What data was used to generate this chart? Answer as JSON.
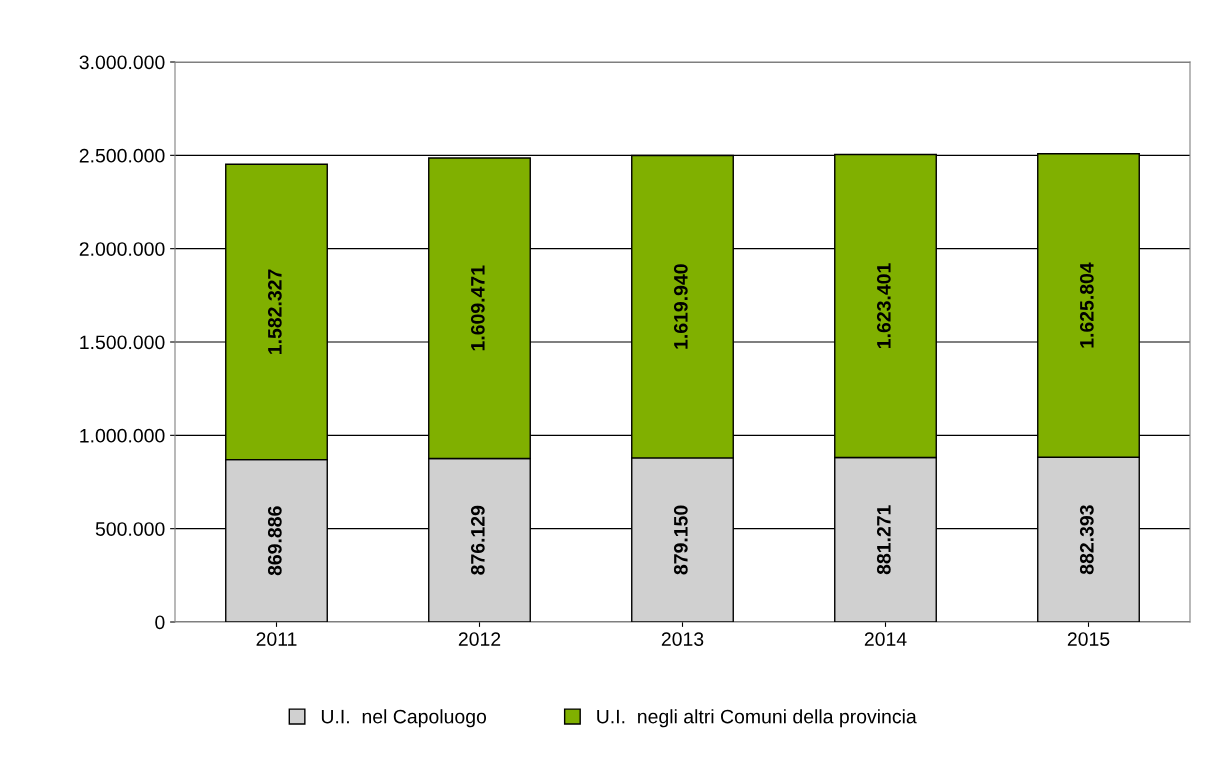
{
  "chart_data": {
    "type": "bar",
    "stacked": true,
    "categories": [
      "2011",
      "2012",
      "2013",
      "2014",
      "2015"
    ],
    "series": [
      {
        "name": "U.I.  nel Capoluogo",
        "color": "#d0d0d0",
        "values": [
          869886,
          876129,
          879150,
          881271,
          882393
        ],
        "value_labels": [
          "869.886",
          "876.129",
          "879.150",
          "881.271",
          "882.393"
        ]
      },
      {
        "name": "U.I.  negli altri Comuni della provincia",
        "color": "#80b000",
        "values": [
          1582327,
          1609471,
          1619940,
          1623401,
          1625804
        ],
        "value_labels": [
          "1.582.327",
          "1.609.471",
          "1.619.940",
          "1.623.401",
          "1.625.804"
        ]
      }
    ],
    "ylim": [
      0,
      3000000
    ],
    "yticks": [
      {
        "value": 0,
        "label": "0"
      },
      {
        "value": 500000,
        "label": "500.000"
      },
      {
        "value": 1000000,
        "label": "1.000.000"
      },
      {
        "value": 1500000,
        "label": "1.500.000"
      },
      {
        "value": 2000000,
        "label": "2.000.000"
      },
      {
        "value": 2500000,
        "label": "2.500.000"
      },
      {
        "value": 3000000,
        "label": "3.000.000"
      }
    ],
    "grid": "y",
    "legend": "bottom"
  }
}
